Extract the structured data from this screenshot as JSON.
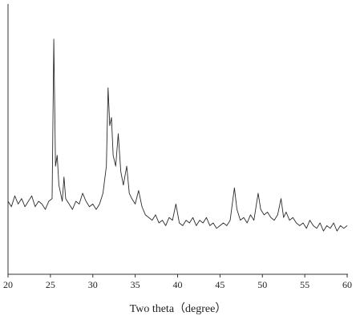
{
  "chart_data": {
    "type": "line",
    "xlabel": "Two theta（degree）",
    "x": [
      20.0,
      20.4,
      20.8,
      21.2,
      21.6,
      22.0,
      22.4,
      22.8,
      23.2,
      23.6,
      24.0,
      24.4,
      24.8,
      25.2,
      25.4,
      25.6,
      25.8,
      26.0,
      26.4,
      26.6,
      26.8,
      27.2,
      27.6,
      28.0,
      28.4,
      28.8,
      29.2,
      29.6,
      30.0,
      30.4,
      30.8,
      31.2,
      31.6,
      31.8,
      32.0,
      32.2,
      32.4,
      32.7,
      33.0,
      33.3,
      33.6,
      34.0,
      34.3,
      34.6,
      35.0,
      35.4,
      35.8,
      36.2,
      36.6,
      37.0,
      37.4,
      37.8,
      38.2,
      38.6,
      39.0,
      39.4,
      39.8,
      40.2,
      40.6,
      41.0,
      41.4,
      41.8,
      42.2,
      42.6,
      43.0,
      43.4,
      43.8,
      44.2,
      44.6,
      45.0,
      45.4,
      45.8,
      46.2,
      46.7,
      47.0,
      47.4,
      47.8,
      48.2,
      48.6,
      49.0,
      49.5,
      49.8,
      50.2,
      50.6,
      51.0,
      51.4,
      51.8,
      52.2,
      52.5,
      52.8,
      53.2,
      53.6,
      54.0,
      54.4,
      54.8,
      55.2,
      55.6,
      56.0,
      56.4,
      56.8,
      57.2,
      57.6,
      58.0,
      58.4,
      58.8,
      59.2,
      59.6,
      60.0
    ],
    "values": [
      27,
      25,
      29,
      26,
      28,
      25,
      27,
      29,
      25,
      27,
      26,
      24,
      27,
      28,
      87,
      40,
      44,
      33,
      27,
      36,
      28,
      26,
      24,
      27,
      26,
      30,
      27,
      25,
      26,
      24,
      26,
      30,
      40,
      69,
      55,
      58,
      44,
      40,
      52,
      38,
      33,
      40,
      30,
      28,
      26,
      31,
      25,
      22,
      21,
      20,
      22,
      19,
      20,
      18,
      21,
      20,
      26,
      19,
      18,
      20,
      19,
      21,
      18,
      20,
      19,
      21,
      18,
      19,
      17,
      18,
      19,
      18,
      20,
      32,
      24,
      20,
      21,
      19,
      22,
      20,
      30,
      24,
      22,
      23,
      21,
      20,
      22,
      28,
      21,
      23,
      20,
      21,
      19,
      18,
      19,
      17,
      20,
      18,
      17,
      19,
      16,
      18,
      17,
      19,
      16,
      18,
      17,
      18
    ],
    "color": "#2b2b2b",
    "xlim": [
      20,
      60
    ],
    "xticks": [
      20,
      25,
      30,
      35,
      40,
      45,
      50,
      55,
      60
    ],
    "ylim": [
      0,
      100
    ]
  }
}
